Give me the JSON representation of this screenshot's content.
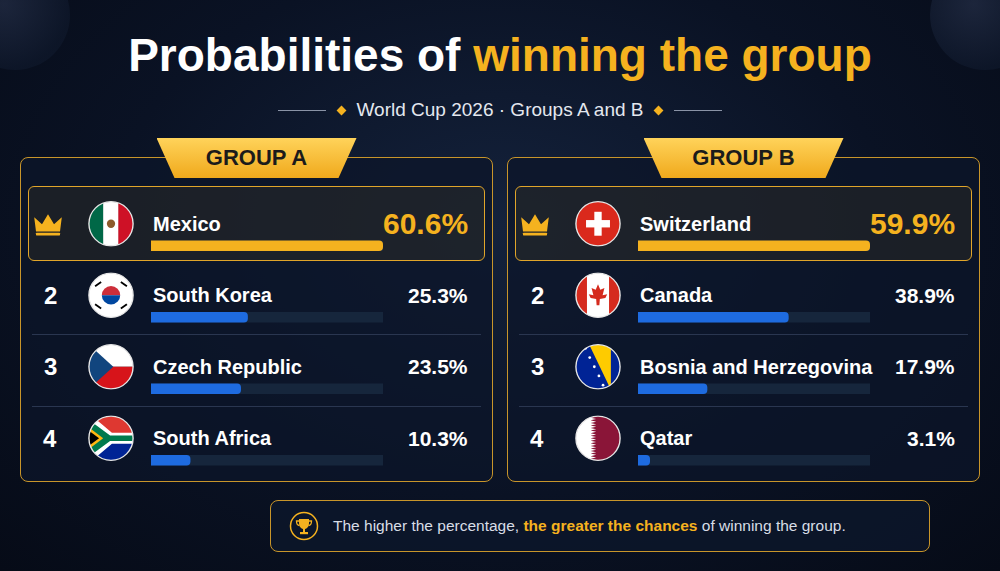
{
  "title": [
    "Probabilities of",
    "winning the group"
  ],
  "subtitle": "World Cup 2026 · Groups A and B",
  "note": [
    "The higher the percentage,",
    "the greater the chances",
    "of winning the group."
  ],
  "chart_data": [
    {
      "type": "bar",
      "orientation": "horizontal",
      "title": "GROUP A",
      "categories": [
        "Mexico",
        "South Korea",
        "Czech Republic",
        "South Africa"
      ],
      "values": [
        60.6,
        25.3,
        23.5,
        10.3
      ],
      "value_labels": [
        "60.6%",
        "25.3%",
        "23.5%",
        "10.3%"
      ],
      "rank_labels": [
        null,
        "2",
        "3",
        "4"
      ],
      "colors": [
        "#f5b21f",
        "#1e6be0",
        "#1e6be0",
        "#1e6be0"
      ],
      "xlim": [
        0,
        60.6
      ],
      "xticks": [],
      "tick_labels": false,
      "grid": false,
      "data_labels": true
    },
    {
      "type": "bar",
      "orientation": "horizontal",
      "title": "GROUP B",
      "categories": [
        "Switzerland",
        "Canada",
        "Bosnia and Herzegovina",
        "Qatar"
      ],
      "values": [
        59.9,
        38.9,
        17.9,
        3.1
      ],
      "value_labels": [
        "59.9%",
        "38.9%",
        "17.9%",
        "3.1%"
      ],
      "rank_labels": [
        null,
        "2",
        "3",
        "4"
      ],
      "colors": [
        "#f5b21f",
        "#1e6be0",
        "#1e6be0",
        "#1e6be0"
      ],
      "xlim": [
        0,
        59.9
      ],
      "xticks": [],
      "tick_labels": false,
      "grid": false,
      "data_labels": true
    }
  ]
}
